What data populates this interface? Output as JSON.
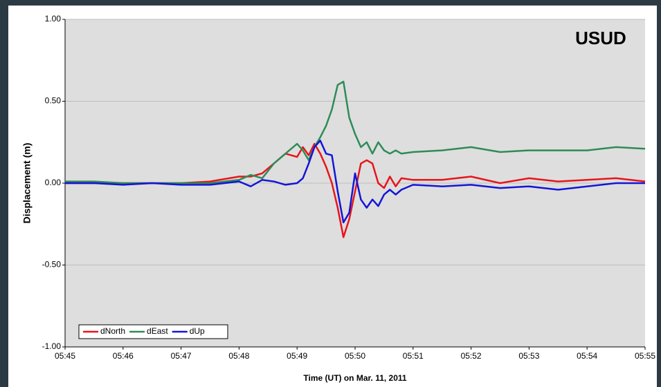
{
  "chart_data": {
    "type": "line",
    "annotation": "USUD",
    "xlabel": "Time (UT) on Mar. 11, 2011",
    "ylabel": "Displacement (m)",
    "x": [
      45,
      45.5,
      46,
      46.5,
      47,
      47.5,
      48,
      48.2,
      48.4,
      48.6,
      48.8,
      49.0,
      49.1,
      49.2,
      49.3,
      49.4,
      49.5,
      49.6,
      49.7,
      49.8,
      49.9,
      50.0,
      50.1,
      50.2,
      50.3,
      50.4,
      50.5,
      50.6,
      50.7,
      50.8,
      51,
      51.5,
      52,
      52.5,
      53,
      53.5,
      54,
      54.5,
      55
    ],
    "series": [
      {
        "name": "dNorth",
        "color": "#e8141a",
        "values": [
          0,
          0,
          0,
          0,
          0,
          0.01,
          0.04,
          0.04,
          0.06,
          0.12,
          0.18,
          0.16,
          0.22,
          0.17,
          0.24,
          0.18,
          0.1,
          0.0,
          -0.15,
          -0.33,
          -0.22,
          -0.05,
          0.12,
          0.14,
          0.12,
          0.0,
          -0.03,
          0.04,
          -0.02,
          0.03,
          0.02,
          0.02,
          0.04,
          0.0,
          0.03,
          0.01,
          0.02,
          0.03,
          0.01
        ]
      },
      {
        "name": "dEast",
        "color": "#2e8b57",
        "values": [
          0.01,
          0.01,
          0.0,
          0.0,
          0.0,
          0.0,
          0.02,
          0.05,
          0.03,
          0.12,
          0.18,
          0.24,
          0.2,
          0.14,
          0.22,
          0.28,
          0.35,
          0.45,
          0.6,
          0.62,
          0.4,
          0.3,
          0.22,
          0.25,
          0.18,
          0.25,
          0.2,
          0.18,
          0.2,
          0.18,
          0.19,
          0.2,
          0.22,
          0.19,
          0.2,
          0.2,
          0.2,
          0.22,
          0.21
        ]
      },
      {
        "name": "dUp",
        "color": "#1414d8",
        "values": [
          0,
          0,
          -0.01,
          0,
          -0.01,
          -0.01,
          0.01,
          -0.02,
          0.02,
          0.01,
          -0.01,
          0.0,
          0.03,
          0.12,
          0.22,
          0.26,
          0.18,
          0.17,
          -0.05,
          -0.24,
          -0.18,
          0.06,
          -0.1,
          -0.15,
          -0.1,
          -0.14,
          -0.07,
          -0.04,
          -0.07,
          -0.04,
          -0.01,
          -0.02,
          -0.01,
          -0.03,
          -0.02,
          -0.04,
          -0.02,
          0.0,
          0.0
        ]
      }
    ],
    "xlim": [
      45,
      55
    ],
    "xticks": [
      {
        "value": 45,
        "label": "05:45"
      },
      {
        "value": 46,
        "label": "05:46"
      },
      {
        "value": 47,
        "label": "05:47"
      },
      {
        "value": 48,
        "label": "05:48"
      },
      {
        "value": 49,
        "label": "05:49"
      },
      {
        "value": 50,
        "label": "05:50"
      },
      {
        "value": 51,
        "label": "05:51"
      },
      {
        "value": 52,
        "label": "05:52"
      },
      {
        "value": 53,
        "label": "05:53"
      },
      {
        "value": 54,
        "label": "05:54"
      },
      {
        "value": 55,
        "label": "05:55"
      }
    ],
    "ylim": [
      -1,
      1
    ],
    "yticks": [
      {
        "value": -1,
        "label": "-1.00"
      },
      {
        "value": -0.5,
        "label": "-0.50"
      },
      {
        "value": 0,
        "label": "0.00"
      },
      {
        "value": 0.5,
        "label": "0.50"
      },
      {
        "value": 1,
        "label": "1.00"
      }
    ],
    "grid": true,
    "legend": "bottom-left"
  }
}
